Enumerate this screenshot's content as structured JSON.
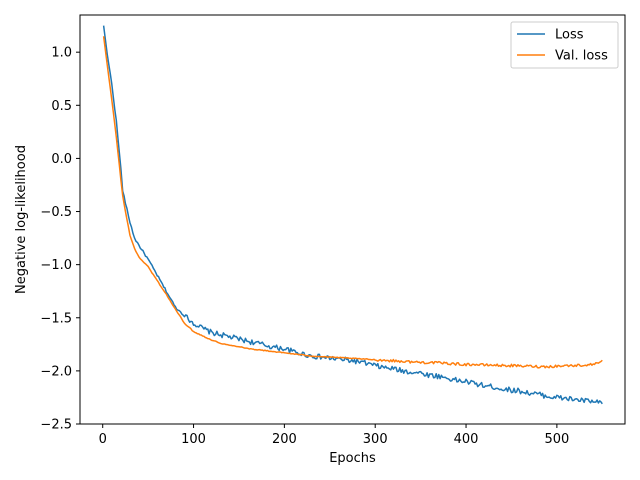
{
  "chart_data": {
    "type": "line",
    "xlabel": "Epochs",
    "ylabel": "Negative log-likelihood",
    "xlim": [
      -25,
      575
    ],
    "ylim": [
      -2.5,
      1.35
    ],
    "xticks": [
      0,
      100,
      200,
      300,
      400,
      500
    ],
    "yticks": [
      1.0,
      0.5,
      0.0,
      -0.5,
      -1.0,
      -1.5,
      -2.0,
      -2.5
    ],
    "xtick_labels": [
      "0",
      "100",
      "200",
      "300",
      "400",
      "500"
    ],
    "ytick_labels": [
      "1.0",
      "0.5",
      "0.0",
      "−0.5",
      "−1.0",
      "−1.5",
      "−2.0",
      "−2.5"
    ],
    "grid": false,
    "legend_position": "top-right",
    "series": [
      {
        "name": "Loss",
        "color": "#1f77b4",
        "x": [
          1,
          5,
          10,
          15,
          20,
          22,
          25,
          30,
          35,
          40,
          50,
          60,
          70,
          80,
          90,
          100,
          110,
          120,
          130,
          140,
          150,
          160,
          170,
          180,
          190,
          200,
          210,
          220,
          230,
          240,
          250,
          260,
          270,
          280,
          290,
          300,
          310,
          320,
          330,
          340,
          350,
          360,
          370,
          380,
          390,
          400,
          410,
          420,
          430,
          440,
          450,
          460,
          470,
          480,
          490,
          500,
          510,
          520,
          530,
          540,
          550
        ],
        "y": [
          1.25,
          0.98,
          0.7,
          0.35,
          -0.1,
          -0.3,
          -0.42,
          -0.6,
          -0.75,
          -0.82,
          -0.95,
          -1.1,
          -1.25,
          -1.4,
          -1.48,
          -1.55,
          -1.6,
          -1.64,
          -1.66,
          -1.68,
          -1.7,
          -1.72,
          -1.74,
          -1.76,
          -1.78,
          -1.79,
          -1.82,
          -1.84,
          -1.86,
          -1.87,
          -1.88,
          -1.89,
          -1.9,
          -1.91,
          -1.93,
          -1.95,
          -1.97,
          -1.98,
          -2.0,
          -2.01,
          -2.02,
          -2.04,
          -2.05,
          -2.07,
          -2.09,
          -2.1,
          -2.12,
          -2.14,
          -2.15,
          -2.17,
          -2.18,
          -2.19,
          -2.21,
          -2.22,
          -2.24,
          -2.25,
          -2.26,
          -2.27,
          -2.28,
          -2.29,
          -2.31
        ]
      },
      {
        "name": "Val. loss",
        "color": "#ff7f0e",
        "x": [
          1,
          5,
          10,
          15,
          20,
          22,
          25,
          30,
          35,
          40,
          50,
          60,
          70,
          80,
          90,
          100,
          110,
          120,
          130,
          140,
          150,
          160,
          170,
          180,
          190,
          200,
          210,
          220,
          230,
          240,
          250,
          260,
          270,
          280,
          290,
          300,
          310,
          320,
          330,
          340,
          350,
          360,
          370,
          380,
          390,
          400,
          410,
          420,
          430,
          440,
          450,
          460,
          470,
          480,
          490,
          500,
          510,
          520,
          530,
          540,
          550
        ],
        "y": [
          1.15,
          0.88,
          0.55,
          0.2,
          -0.2,
          -0.35,
          -0.5,
          -0.72,
          -0.85,
          -0.93,
          -1.02,
          -1.15,
          -1.28,
          -1.42,
          -1.55,
          -1.63,
          -1.67,
          -1.71,
          -1.74,
          -1.76,
          -1.77,
          -1.79,
          -1.8,
          -1.81,
          -1.82,
          -1.83,
          -1.84,
          -1.85,
          -1.86,
          -1.865,
          -1.87,
          -1.875,
          -1.88,
          -1.885,
          -1.89,
          -1.895,
          -1.9,
          -1.905,
          -1.91,
          -1.915,
          -1.92,
          -1.92,
          -1.925,
          -1.93,
          -1.935,
          -1.94,
          -1.94,
          -1.945,
          -1.945,
          -1.95,
          -1.95,
          -1.955,
          -1.955,
          -1.96,
          -1.96,
          -1.955,
          -1.95,
          -1.95,
          -1.945,
          -1.94,
          -1.9
        ]
      }
    ]
  }
}
